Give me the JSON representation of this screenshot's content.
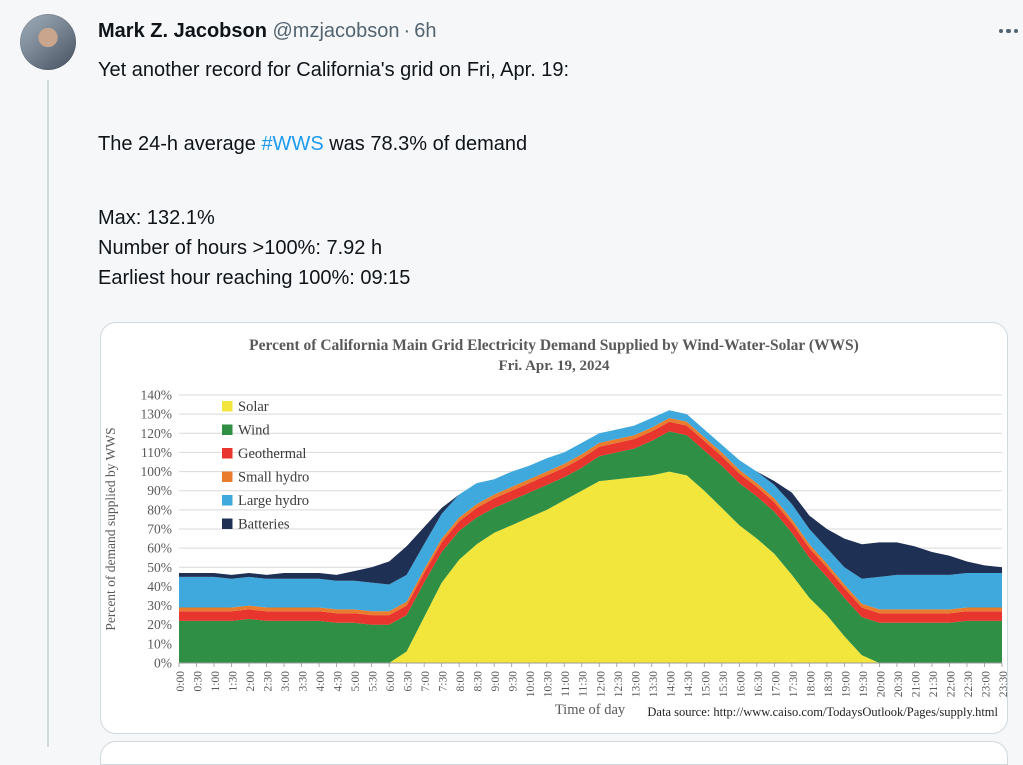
{
  "tweet": {
    "author": "Mark Z. Jacobson",
    "handle": "@mzjacobson",
    "separator": "·",
    "time": "6h",
    "line1": "Yet another record for California's grid on Fri, Apr. 19:",
    "line2_pre": "The 24-h average ",
    "hashtag": "#WWS",
    "line2_post": " was 78.3% of demand",
    "stat1": "Max: 132.1%",
    "stat2": "Number of hours >100%: 7.92 h",
    "stat3": "Earliest hour reaching 100%: 09:15"
  },
  "colors": {
    "link_blue": "#1d9bf0",
    "text_primary": "#0f1419",
    "text_secondary": "#536471",
    "card_border": "#cfd9de"
  },
  "chart_data": {
    "type": "area",
    "stacked": true,
    "title": "Percent of California Main Grid Electricity Demand Supplied by Wind-Water-Solar (WWS)",
    "subtitle": "Fri. Apr. 19, 2024",
    "xlabel": "Time of day",
    "ylabel": "Percent of demand supplied by WWS",
    "source_note": "Data source: http://www.caiso.com/TodaysOutlook/Pages/supply.html",
    "ylim": [
      0,
      140
    ],
    "ytick_step": 10,
    "ytick_suffix": "%",
    "grid": true,
    "legend_position": "top-left-inside",
    "x": [
      "0:00",
      "0:30",
      "1:00",
      "1:30",
      "2:00",
      "2:30",
      "3:00",
      "3:30",
      "4:00",
      "4:30",
      "5:00",
      "5:30",
      "6:00",
      "6:30",
      "7:00",
      "7:30",
      "8:00",
      "8:30",
      "9:00",
      "9:30",
      "10:00",
      "10:30",
      "11:00",
      "11:30",
      "12:00",
      "12:30",
      "13:00",
      "13:30",
      "14:00",
      "14:30",
      "15:00",
      "15:30",
      "16:00",
      "16:30",
      "17:00",
      "17:30",
      "18:00",
      "18:30",
      "19:00",
      "19:30",
      "20:00",
      "20:30",
      "21:00",
      "21:30",
      "22:00",
      "22:30",
      "23:00",
      "23:30"
    ],
    "series": [
      {
        "name": "Solar",
        "color": "#F2E63D",
        "values": [
          0,
          0,
          0,
          0,
          0,
          0,
          0,
          0,
          0,
          0,
          0,
          0,
          0,
          6,
          24,
          42,
          54,
          62,
          68,
          72,
          76,
          80,
          85,
          90,
          95,
          96,
          97,
          98,
          100,
          98,
          90,
          81,
          72,
          65,
          57,
          46,
          34,
          25,
          14,
          4,
          0,
          0,
          0,
          0,
          0,
          0,
          0,
          0
        ]
      },
      {
        "name": "Wind",
        "color": "#2E8F45",
        "values": [
          22,
          22,
          22,
          22,
          23,
          22,
          22,
          22,
          22,
          21,
          21,
          20,
          20,
          19,
          18,
          16,
          15,
          14,
          13,
          13,
          13,
          13,
          12,
          12,
          13,
          14,
          15,
          18,
          21,
          21,
          21,
          22,
          22,
          22,
          22,
          22,
          21,
          20,
          20,
          20,
          21,
          21,
          21,
          21,
          21,
          22,
          22,
          22
        ]
      },
      {
        "name": "Geothermal",
        "color": "#E8352E",
        "values": [
          5,
          5,
          5,
          5,
          5,
          5,
          5,
          5,
          5,
          5,
          5,
          5,
          5,
          5,
          5,
          5,
          5,
          5,
          5,
          5,
          5,
          5,
          5,
          5,
          5,
          5,
          5,
          5,
          5,
          5,
          5,
          5,
          5,
          5,
          5,
          5,
          5,
          5,
          5,
          5,
          5,
          5,
          5,
          5,
          5,
          5,
          5,
          5
        ]
      },
      {
        "name": "Small hydro",
        "color": "#E97D2D",
        "values": [
          2,
          2,
          2,
          2,
          2,
          2,
          2,
          2,
          2,
          2,
          2,
          2,
          2,
          2,
          2,
          2,
          2,
          2,
          2,
          2,
          2,
          2,
          2,
          2,
          2,
          2,
          2,
          2,
          2,
          2,
          2,
          2,
          2,
          2,
          2,
          2,
          2,
          2,
          2,
          2,
          2,
          2,
          2,
          2,
          2,
          2,
          2,
          2
        ]
      },
      {
        "name": "Large hydro",
        "color": "#3FA8DC",
        "values": [
          16,
          16,
          16,
          15,
          15,
          15,
          15,
          15,
          15,
          15,
          15,
          15,
          14,
          14,
          13,
          13,
          12,
          11,
          8,
          8,
          7,
          7,
          6,
          6,
          5,
          5,
          5,
          5,
          4,
          4,
          4,
          4,
          5,
          6,
          7,
          8,
          8,
          8,
          9,
          13,
          17,
          18,
          18,
          18,
          18,
          18,
          18,
          18
        ]
      },
      {
        "name": "Batteries",
        "color": "#1F3055",
        "values": [
          2,
          2,
          2,
          2,
          2,
          2,
          3,
          3,
          3,
          3,
          5,
          8,
          12,
          15,
          9,
          3,
          0,
          0,
          0,
          0,
          0,
          0,
          0,
          0,
          0,
          0,
          0,
          0,
          0,
          0,
          0,
          0,
          0,
          0,
          2,
          6,
          7,
          10,
          15,
          18,
          18,
          17,
          15,
          12,
          10,
          6,
          4,
          3
        ]
      }
    ]
  }
}
